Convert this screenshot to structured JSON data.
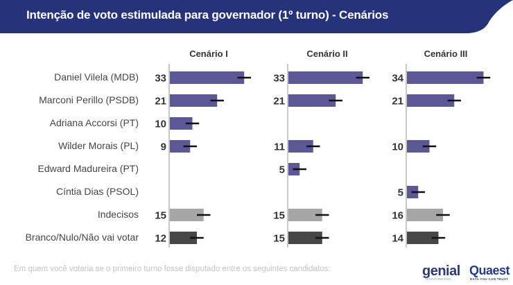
{
  "header": {
    "title": "Intenção de voto estimulada para governador (1º turno) - Cenários",
    "color": "#25337a"
  },
  "chart_data": {
    "type": "bar",
    "orientation": "horizontal",
    "title": "Intenção de voto estimulada para governador (1º turno) - Cenários",
    "categories": [
      "Daniel Vilela (MDB)",
      "Marconi Perillo (PSDB)",
      "Adriana Accorsi (PT)",
      "Wilder Morais (PL)",
      "Edward Madureira (PT)",
      "Cíntia Dias (PSOL)",
      "Indecisos",
      "Branco/Nulo/Não vai votar"
    ],
    "category_colors": [
      "#5c5797",
      "#5c5797",
      "#5c5797",
      "#5c5797",
      "#5c5797",
      "#5c5797",
      "#a6a6a6",
      "#474747"
    ],
    "series": [
      {
        "name": "Cenário I",
        "values": [
          33,
          21,
          10,
          9,
          null,
          null,
          15,
          12
        ]
      },
      {
        "name": "Cenário II",
        "values": [
          33,
          21,
          null,
          11,
          5,
          null,
          15,
          15
        ]
      },
      {
        "name": "Cenário III",
        "values": [
          34,
          21,
          null,
          10,
          null,
          5,
          16,
          14
        ]
      }
    ],
    "error_margin": 3,
    "xlim": [
      0,
      40
    ],
    "grid": false,
    "legend": "none",
    "data_labels": "left-of-bar"
  },
  "footer": {
    "question": "Em quem você votaria se o primeiro turno fosse disputado entre os seguintes candidatos:",
    "logo_genial": "genial",
    "logo_genial_sub": "investimentos",
    "logo_quaest": "Quaest",
    "logo_quaest_sub": "DATA YOU CAN TRUST"
  }
}
